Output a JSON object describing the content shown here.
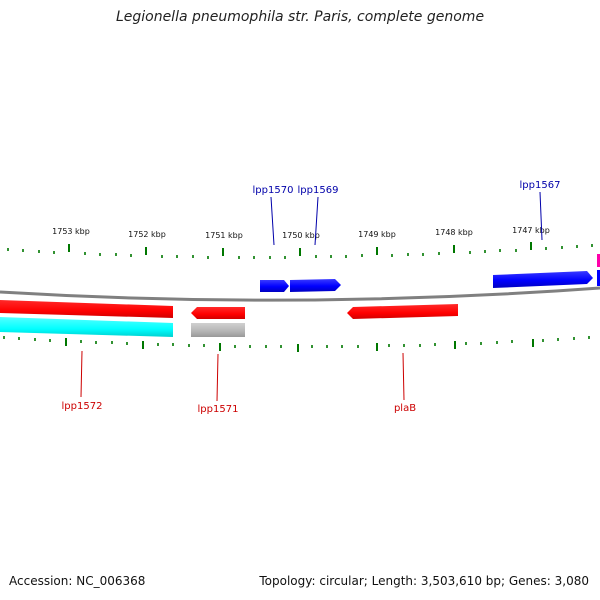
{
  "header": {
    "title": "Legionella pneumophila str. Paris, complete genome"
  },
  "footer": {
    "accession": "Accession: NC_006368",
    "summary": "Topology: circular; Length: 3,503,610 bp; Genes: 3,080"
  },
  "colors": {
    "forward_gene": "#0000ff",
    "reverse_gene": "#ff0000",
    "forward_label": "#0000aa",
    "reverse_label": "#cc0000",
    "backbone": "#808080",
    "ticks": "#007700",
    "other_feature": "#00ffff",
    "pseudo_feature": "#b4b4b4",
    "misc_feature": "#ff00aa"
  },
  "scale": {
    "tick_labels": [
      "1753 kbp",
      "1752 kbp",
      "1751 kbp",
      "1750 kbp",
      "1749 kbp",
      "1748 kbp",
      "1747 kbp"
    ]
  },
  "genes": {
    "lpp1567": {
      "label": "lpp1567",
      "strand": "forward"
    },
    "lpp1569": {
      "label": "lpp1569",
      "strand": "forward"
    },
    "lpp1570": {
      "label": "lpp1570",
      "strand": "forward"
    },
    "lpp1571": {
      "label": "lpp1571",
      "strand": "reverse"
    },
    "lpp1572": {
      "label": "lpp1572",
      "strand": "reverse"
    },
    "plaB": {
      "label": "plaB",
      "strand": "reverse"
    }
  }
}
